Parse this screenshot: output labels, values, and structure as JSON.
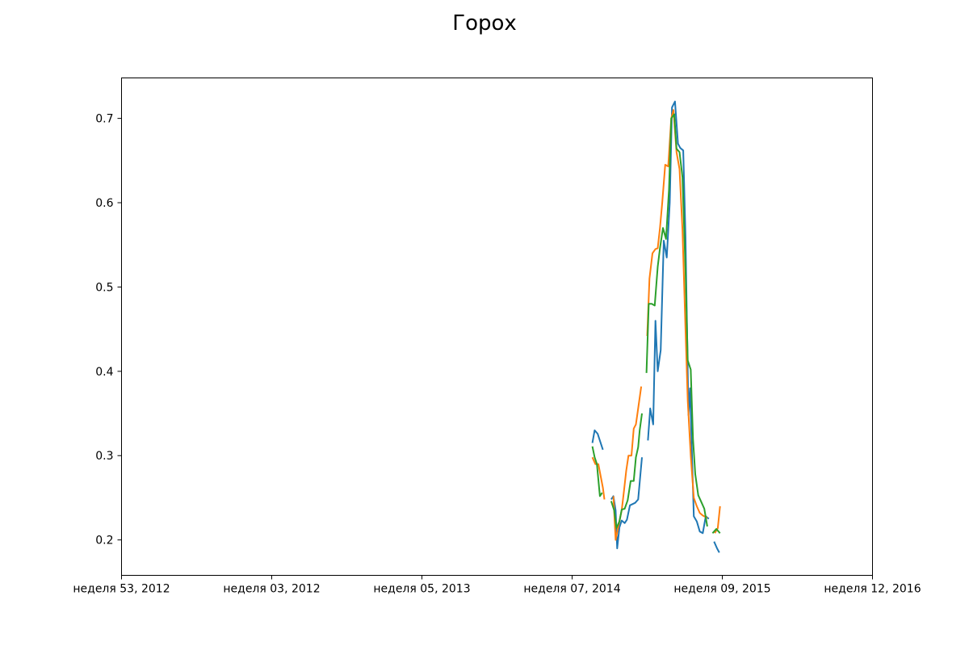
{
  "chart_data": {
    "type": "line",
    "title": "Горох",
    "xlabel": "",
    "ylabel": "",
    "grid": false,
    "xlim": [
      0,
      10.0
    ],
    "ylim": [
      0.158,
      0.748
    ],
    "x_ticks": [
      {
        "value": 0,
        "label": "неделя 53, 2012"
      },
      {
        "value": 2,
        "label": "неделя 03, 2012"
      },
      {
        "value": 4,
        "label": "неделя 05, 2013"
      },
      {
        "value": 6,
        "label": "неделя 07, 2014"
      },
      {
        "value": 8,
        "label": "неделя 09, 2015"
      },
      {
        "value": 10,
        "label": "неделя 12, 2016"
      }
    ],
    "y_ticks": [
      0.2,
      0.3,
      0.4,
      0.5,
      0.6,
      0.7
    ],
    "series": [
      {
        "color": "#1f77b4",
        "segments": [
          [
            [
              6.27,
              0.315
            ],
            [
              6.3,
              0.33
            ],
            [
              6.34,
              0.326
            ],
            [
              6.41,
              0.307
            ]
          ],
          [
            [
              6.52,
              0.248
            ],
            [
              6.55,
              0.252
            ],
            [
              6.58,
              0.235
            ],
            [
              6.6,
              0.19
            ],
            [
              6.63,
              0.215
            ],
            [
              6.66,
              0.223
            ],
            [
              6.7,
              0.22
            ],
            [
              6.73,
              0.224
            ],
            [
              6.77,
              0.241
            ],
            [
              6.84,
              0.244
            ],
            [
              6.88,
              0.248
            ],
            [
              6.91,
              0.278
            ],
            [
              6.93,
              0.298
            ]
          ],
          [
            [
              7.01,
              0.318
            ],
            [
              7.04,
              0.356
            ],
            [
              7.08,
              0.337
            ],
            [
              7.11,
              0.46
            ],
            [
              7.14,
              0.4
            ],
            [
              7.18,
              0.425
            ],
            [
              7.22,
              0.555
            ],
            [
              7.26,
              0.535
            ],
            [
              7.3,
              0.6
            ],
            [
              7.33,
              0.713
            ],
            [
              7.37,
              0.72
            ],
            [
              7.41,
              0.67
            ],
            [
              7.44,
              0.665
            ],
            [
              7.48,
              0.662
            ],
            [
              7.51,
              0.56
            ],
            [
              7.55,
              0.348
            ],
            [
              7.57,
              0.38
            ],
            [
              7.62,
              0.228
            ],
            [
              7.66,
              0.222
            ],
            [
              7.7,
              0.21
            ],
            [
              7.74,
              0.208
            ],
            [
              7.78,
              0.228
            ],
            [
              7.82,
              0.225
            ]
          ],
          [
            [
              7.89,
              0.198
            ],
            [
              7.93,
              0.19
            ],
            [
              7.96,
              0.185
            ]
          ]
        ]
      },
      {
        "color": "#ff7f0e",
        "segments": [
          [
            [
              6.27,
              0.298
            ],
            [
              6.31,
              0.29
            ],
            [
              6.35,
              0.29
            ],
            [
              6.38,
              0.276
            ],
            [
              6.41,
              0.262
            ],
            [
              6.43,
              0.248
            ]
          ],
          [
            [
              6.55,
              0.252
            ],
            [
              6.58,
              0.2
            ],
            [
              6.62,
              0.218
            ],
            [
              6.66,
              0.235
            ],
            [
              6.69,
              0.258
            ],
            [
              6.72,
              0.282
            ],
            [
              6.75,
              0.3
            ],
            [
              6.79,
              0.3
            ],
            [
              6.82,
              0.332
            ],
            [
              6.85,
              0.337
            ],
            [
              6.88,
              0.356
            ],
            [
              6.92,
              0.382
            ]
          ],
          [
            [
              7.0,
              0.442
            ],
            [
              7.03,
              0.51
            ],
            [
              7.07,
              0.54
            ],
            [
              7.11,
              0.545
            ],
            [
              7.14,
              0.546
            ],
            [
              7.17,
              0.57
            ],
            [
              7.2,
              0.6
            ],
            [
              7.24,
              0.645
            ],
            [
              7.28,
              0.643
            ],
            [
              7.32,
              0.7
            ],
            [
              7.35,
              0.71
            ],
            [
              7.39,
              0.66
            ],
            [
              7.43,
              0.64
            ],
            [
              7.47,
              0.567
            ],
            [
              7.51,
              0.45
            ],
            [
              7.54,
              0.365
            ],
            [
              7.58,
              0.3
            ],
            [
              7.62,
              0.25
            ],
            [
              7.66,
              0.24
            ],
            [
              7.7,
              0.232
            ],
            [
              7.74,
              0.229
            ],
            [
              7.8,
              0.226
            ]
          ],
          [
            [
              7.9,
              0.208
            ],
            [
              7.94,
              0.214
            ],
            [
              7.97,
              0.24
            ]
          ]
        ]
      },
      {
        "color": "#2ca02c",
        "segments": [
          [
            [
              6.27,
              0.311
            ],
            [
              6.3,
              0.298
            ],
            [
              6.33,
              0.29
            ],
            [
              6.37,
              0.252
            ],
            [
              6.4,
              0.256
            ]
          ],
          [
            [
              6.52,
              0.246
            ],
            [
              6.56,
              0.235
            ],
            [
              6.59,
              0.214
            ],
            [
              6.63,
              0.222
            ],
            [
              6.66,
              0.236
            ],
            [
              6.7,
              0.237
            ],
            [
              6.74,
              0.247
            ],
            [
              6.78,
              0.27
            ],
            [
              6.82,
              0.27
            ],
            [
              6.85,
              0.298
            ],
            [
              6.88,
              0.31
            ],
            [
              6.9,
              0.33
            ],
            [
              6.93,
              0.35
            ]
          ],
          [
            [
              6.99,
              0.398
            ],
            [
              7.02,
              0.48
            ],
            [
              7.06,
              0.48
            ],
            [
              7.1,
              0.478
            ],
            [
              7.14,
              0.524
            ],
            [
              7.17,
              0.546
            ],
            [
              7.21,
              0.57
            ],
            [
              7.25,
              0.557
            ],
            [
              7.29,
              0.616
            ],
            [
              7.32,
              0.7
            ],
            [
              7.36,
              0.705
            ],
            [
              7.39,
              0.664
            ],
            [
              7.43,
              0.66
            ],
            [
              7.47,
              0.63
            ],
            [
              7.51,
              0.52
            ],
            [
              7.54,
              0.413
            ],
            [
              7.58,
              0.402
            ],
            [
              7.61,
              0.32
            ],
            [
              7.64,
              0.278
            ],
            [
              7.68,
              0.253
            ],
            [
              7.72,
              0.245
            ],
            [
              7.76,
              0.237
            ],
            [
              7.8,
              0.216
            ]
          ],
          [
            [
              7.87,
              0.208
            ],
            [
              7.92,
              0.213
            ],
            [
              7.97,
              0.208
            ]
          ]
        ]
      }
    ]
  }
}
